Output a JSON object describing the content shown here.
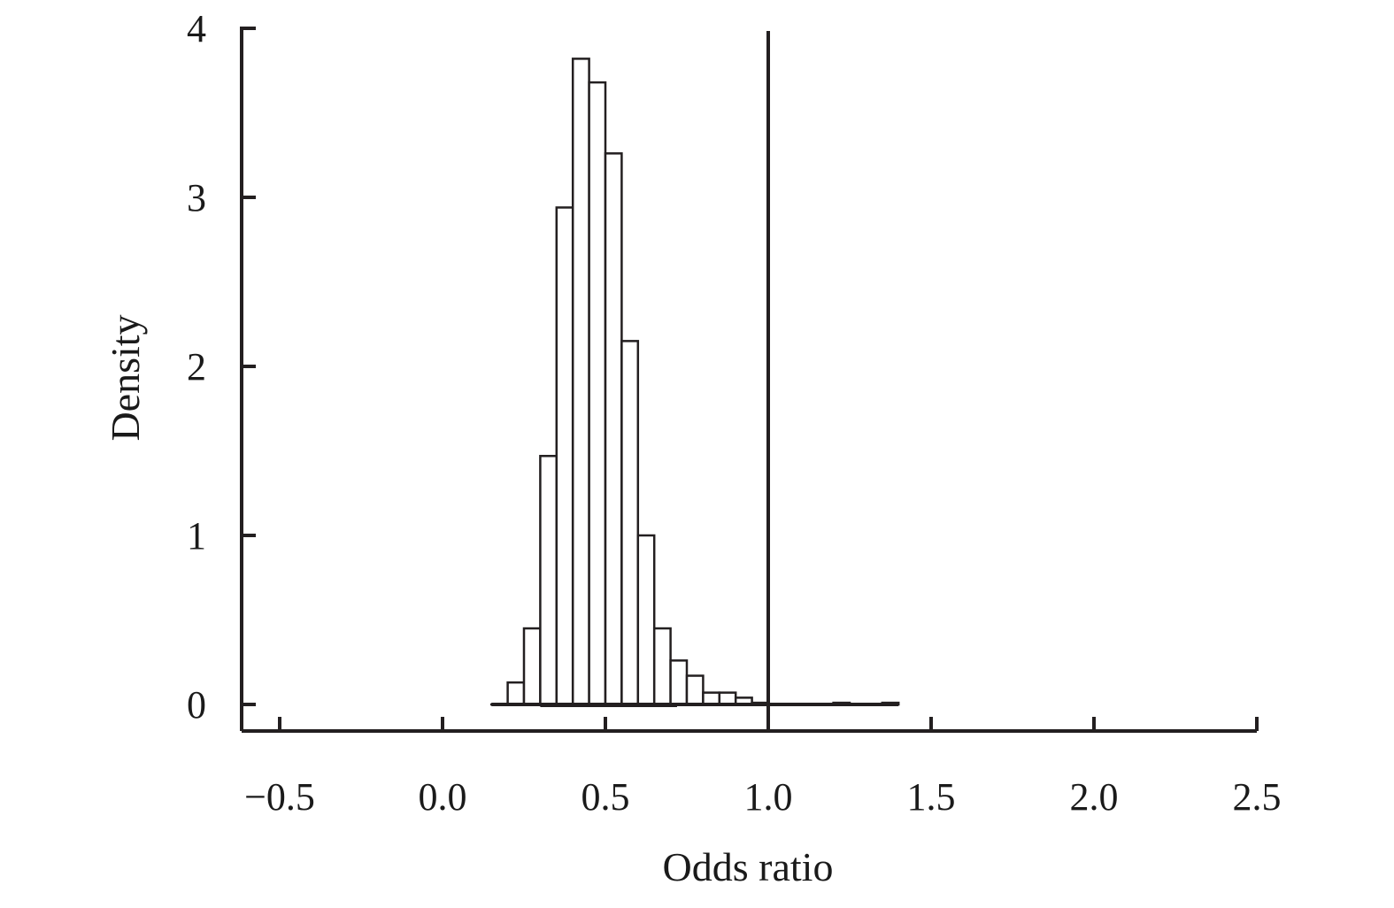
{
  "chart_data": {
    "type": "bar",
    "subtype": "histogram",
    "xlabel": "Odds ratio",
    "ylabel": "Density",
    "xlim": [
      -0.6,
      2.5
    ],
    "ylim": [
      -0.15,
      4
    ],
    "xticks": [
      -0.5,
      0.0,
      0.5,
      1.0,
      1.5,
      2.0,
      2.5
    ],
    "xtick_labels": [
      "−0.5",
      "0.0",
      "0.5",
      "1.0",
      "1.5",
      "2.0",
      "2.5"
    ],
    "yticks": [
      0,
      1,
      2,
      3,
      4
    ],
    "ytick_labels": [
      "0",
      "1",
      "2",
      "3",
      "4"
    ],
    "bin_width": 0.05,
    "bins": [
      {
        "x0": 0.15,
        "value": 0.0
      },
      {
        "x0": 0.2,
        "value": 0.13
      },
      {
        "x0": 0.25,
        "value": 0.45
      },
      {
        "x0": 0.3,
        "value": 1.47
      },
      {
        "x0": 0.35,
        "value": 2.94
      },
      {
        "x0": 0.4,
        "value": 3.82
      },
      {
        "x0": 0.45,
        "value": 3.68
      },
      {
        "x0": 0.5,
        "value": 3.26
      },
      {
        "x0": 0.55,
        "value": 2.15
      },
      {
        "x0": 0.6,
        "value": 1.0
      },
      {
        "x0": 0.65,
        "value": 0.45
      },
      {
        "x0": 0.7,
        "value": 0.26
      },
      {
        "x0": 0.75,
        "value": 0.17
      },
      {
        "x0": 0.8,
        "value": 0.07
      },
      {
        "x0": 0.85,
        "value": 0.07
      },
      {
        "x0": 0.9,
        "value": 0.04
      },
      {
        "x0": 0.95,
        "value": 0.01
      },
      {
        "x0": 1.0,
        "value": 0.0
      },
      {
        "x0": 1.05,
        "value": 0.0
      },
      {
        "x0": 1.1,
        "value": 0.0
      },
      {
        "x0": 1.15,
        "value": 0.0
      },
      {
        "x0": 1.2,
        "value": 0.01
      },
      {
        "x0": 1.25,
        "value": 0.0
      },
      {
        "x0": 1.3,
        "value": 0.0
      },
      {
        "x0": 1.35,
        "value": 0.01
      }
    ],
    "reference_line_x": 1.0,
    "interval": [
      0.3,
      0.72
    ],
    "grid": false,
    "legend": "none"
  }
}
